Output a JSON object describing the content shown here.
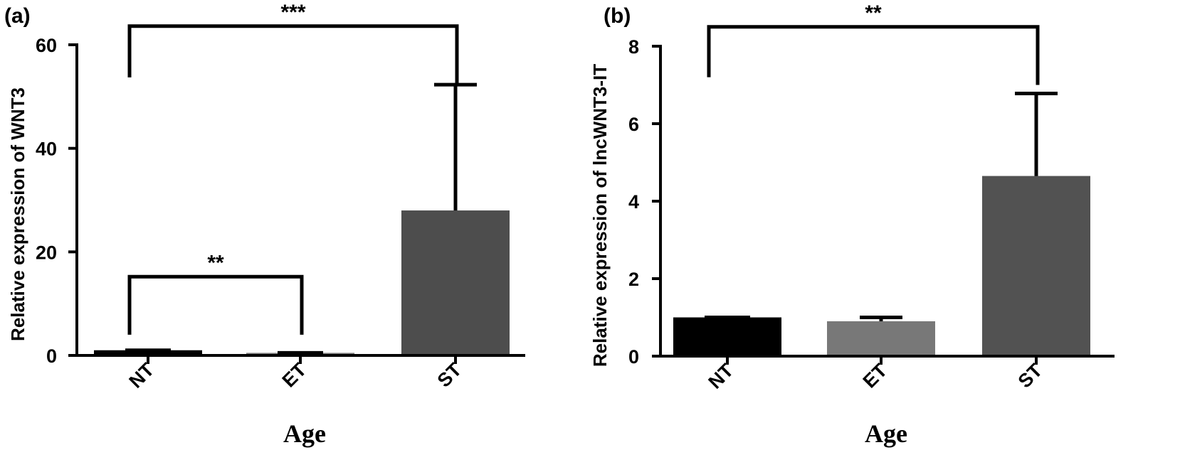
{
  "chart_data": [
    {
      "type": "bar",
      "panel_label": "(a)",
      "categories": [
        "NT",
        "ET",
        "ST"
      ],
      "values": [
        1.0,
        0.5,
        28.0
      ],
      "error_upper": [
        1.0,
        0.5,
        52.3
      ],
      "colors": [
        "#000000",
        "#808080",
        "#4d4d4d"
      ],
      "ylabel": "Relative expression of WNT3",
      "xlabel": "Age",
      "ylim": [
        0,
        60
      ],
      "yticks": [
        0,
        20,
        40,
        60
      ],
      "significance": [
        {
          "from": 0,
          "to": 1,
          "label": "**",
          "bracket_y": 15.2,
          "drop_y": 4.0
        },
        {
          "from": 0,
          "to": 2,
          "label": "***",
          "bracket_y": 63.6,
          "drop_y_left": 53.7,
          "drop_y_right": 52.3
        }
      ]
    },
    {
      "type": "bar",
      "panel_label": "(b)",
      "categories": [
        "NT",
        "ET",
        "ST"
      ],
      "values": [
        1.0,
        0.9,
        4.65
      ],
      "error_upper": [
        1.0,
        1.0,
        6.78
      ],
      "colors": [
        "#000000",
        "#787878",
        "#525252"
      ],
      "ylabel": "Relative expression of lncWNT3-IT",
      "xlabel": "Age",
      "ylim": [
        0,
        8
      ],
      "yticks": [
        0,
        2,
        4,
        6,
        8
      ],
      "significance": [
        {
          "from": 0,
          "to": 2,
          "label": "**",
          "bracket_y": 8.5,
          "drop_y_left": 7.2,
          "drop_y_right": 7.0
        }
      ]
    }
  ]
}
